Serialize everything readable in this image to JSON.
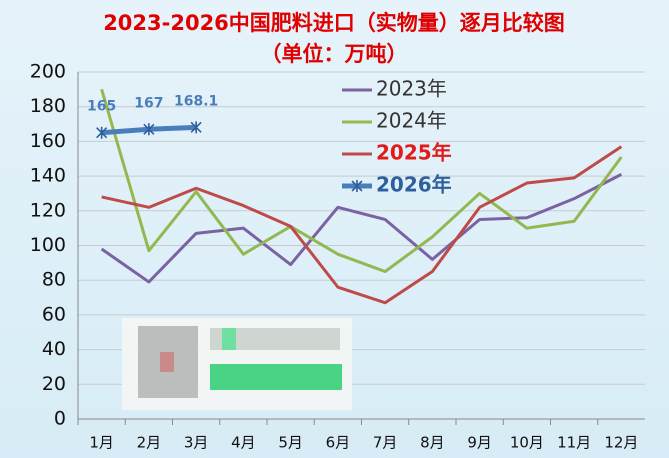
{
  "chart_data": {
    "type": "line",
    "title": "2023-2026中国肥料进口（实物量）逐月比较图",
    "subtitle": "（单位：万吨）",
    "categories": [
      "1月",
      "2月",
      "3月",
      "4月",
      "5月",
      "6月",
      "7月",
      "8月",
      "9月",
      "10月",
      "11月",
      "12月"
    ],
    "series": [
      {
        "name": "2023年",
        "color": "#7b62a3",
        "legend_color": "#333333",
        "values": [
          98,
          79,
          107,
          110,
          89,
          122,
          115,
          92,
          115,
          116,
          127,
          141
        ]
      },
      {
        "name": "2024年",
        "color": "#93b84f",
        "legend_color": "#333333",
        "values": [
          190,
          97,
          131,
          95,
          111,
          95,
          85,
          105,
          130,
          110,
          114,
          151
        ]
      },
      {
        "name": "2025年",
        "color": "#be4b48",
        "legend_color": "#e31a1a",
        "values": [
          128,
          122,
          133,
          123,
          111,
          76,
          67,
          85,
          122,
          136,
          139,
          157
        ]
      },
      {
        "name": "2026年",
        "color": "#4a7ebb",
        "legend_color": "#2f5f9e",
        "values": [
          165,
          167,
          168.1,
          null,
          null,
          null,
          null,
          null,
          null,
          null,
          null,
          null
        ]
      }
    ],
    "ylim": [
      0,
      200
    ],
    "yticks": [
      0,
      20,
      40,
      60,
      80,
      100,
      120,
      140,
      160,
      180,
      200
    ],
    "grid": true
  }
}
